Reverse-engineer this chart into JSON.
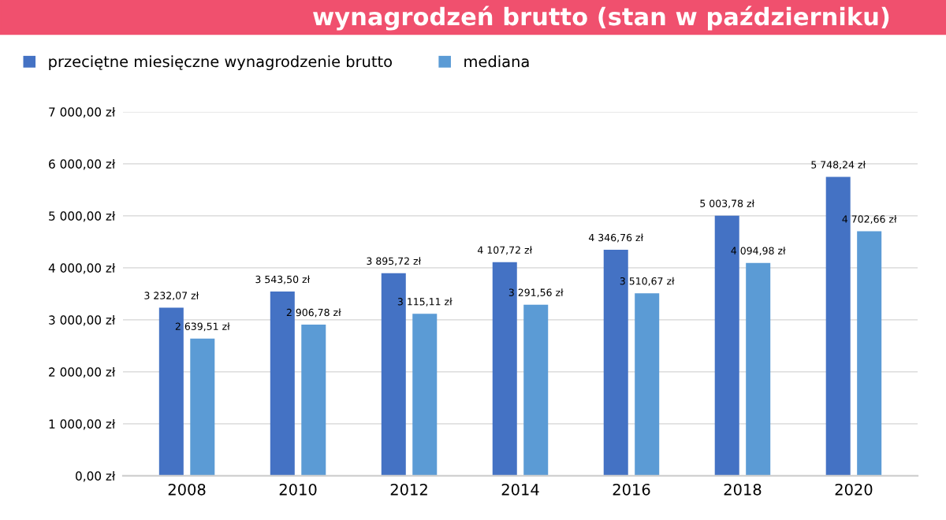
{
  "chart_data": {
    "type": "bar",
    "title": "wynagrodzeń brutto (stan w październiku)",
    "categories": [
      "2008",
      "2010",
      "2012",
      "2014",
      "2016",
      "2018",
      "2020"
    ],
    "series": [
      {
        "name": "przeciętne miesięczne wynagrodzenie brutto",
        "color": "#4472c4",
        "values": [
          3232.07,
          3543.5,
          3895.72,
          4107.72,
          4346.76,
          5003.78,
          5748.24
        ],
        "value_labels": [
          "3 232,07 zł",
          "3 543,50 zł",
          "3 895,72 zł",
          "4 107,72 zł",
          "4 346,76 zł",
          "5 003,78 zł",
          "5 748,24 zł"
        ]
      },
      {
        "name": "mediana",
        "color": "#5b9bd5",
        "values": [
          2639.51,
          2906.78,
          3115.11,
          3291.56,
          3510.67,
          4094.98,
          4702.66
        ],
        "value_labels": [
          "2 639,51 zł",
          "2 906,78 zł",
          "3 115,11 zł",
          "3 291,56 zł",
          "3 510,67 zł",
          "4 094,98 zł",
          "4 702,66 zł"
        ]
      }
    ],
    "ylim": [
      0,
      7000
    ],
    "yticks": [
      {
        "value": 0,
        "label": "0,00 zł"
      },
      {
        "value": 1000,
        "label": "1 000,00 zł"
      },
      {
        "value": 2000,
        "label": "2 000,00 zł"
      },
      {
        "value": 3000,
        "label": "3 000,00 zł"
      },
      {
        "value": 4000,
        "label": "4 000,00 zł"
      },
      {
        "value": 5000,
        "label": "5 000,00 zł"
      },
      {
        "value": 6000,
        "label": "6 000,00 zł"
      },
      {
        "value": 7000,
        "label": "7 000,00 zł"
      }
    ],
    "grid": "y",
    "legend": "top left"
  }
}
